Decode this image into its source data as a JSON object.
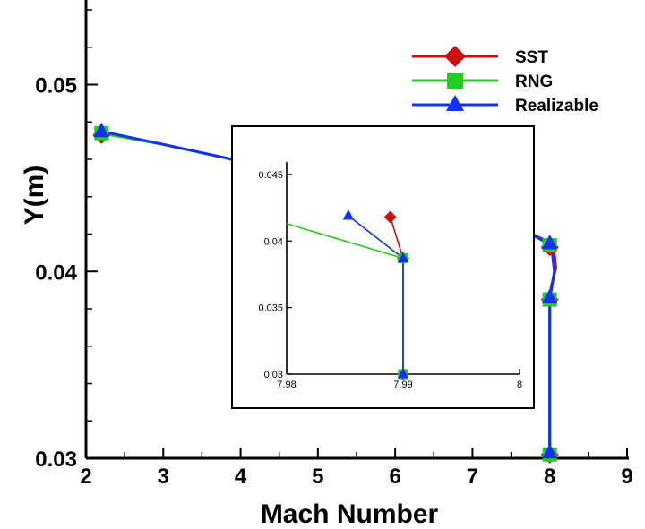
{
  "chart_data": [
    {
      "type": "line",
      "title": "",
      "xlabel": "Mach Number",
      "ylabel": "Y(m)",
      "xlim": [
        2,
        9
      ],
      "ylim": [
        0.03,
        0.055
      ],
      "xticks": [
        2,
        3,
        4,
        5,
        6,
        7,
        8,
        9
      ],
      "yticks": [
        0.03,
        0.04,
        0.05
      ],
      "xtick_labels": [
        "2",
        "3",
        "4",
        "5",
        "6",
        "7",
        "8",
        "9"
      ],
      "ytick_labels": [
        "0.03",
        "0.04",
        "0.05"
      ],
      "legend_position": "top-right",
      "series": [
        {
          "name": "SST",
          "color": "#cc1111",
          "marker": "diamond",
          "x": [
            2.2,
            3.0,
            4.0,
            5.0,
            6.0,
            6.45,
            7.0,
            7.6,
            7.98,
            8.05,
            8.08,
            8.02,
            8.0,
            8.0,
            8.0,
            8.0
          ],
          "y": [
            0.0474,
            0.0468,
            0.0459,
            0.0452,
            0.0442,
            0.0435,
            0.0429,
            0.0423,
            0.0416,
            0.0413,
            0.0402,
            0.0392,
            0.0385,
            0.0355,
            0.033,
            0.0302
          ]
        },
        {
          "name": "RNG",
          "color": "#22cc22",
          "marker": "square",
          "x": [
            2.2,
            3.0,
            4.0,
            5.0,
            6.0,
            6.45,
            7.0,
            7.6,
            7.98,
            8.03,
            8.06,
            8.02,
            8.0,
            8.0,
            8.0,
            8.0
          ],
          "y": [
            0.0474,
            0.0468,
            0.0459,
            0.0452,
            0.0442,
            0.0435,
            0.0429,
            0.0423,
            0.0415,
            0.0411,
            0.04,
            0.039,
            0.0385,
            0.0355,
            0.033,
            0.0302
          ]
        },
        {
          "name": "Realizable",
          "color": "#1133ee",
          "marker": "triangle",
          "x": [
            2.2,
            3.0,
            4.0,
            5.0,
            6.0,
            6.45,
            7.0,
            7.6,
            7.98,
            8.03,
            8.06,
            8.02,
            8.0,
            8.0,
            8.0,
            8.0
          ],
          "y": [
            0.0475,
            0.0468,
            0.0459,
            0.0452,
            0.0442,
            0.0436,
            0.043,
            0.0424,
            0.0415,
            0.0411,
            0.04,
            0.039,
            0.0385,
            0.0355,
            0.033,
            0.0302
          ]
        }
      ],
      "markers": {
        "x": [
          2.2,
          6.45,
          8.0,
          8.0,
          8.0
        ],
        "SST_y": [
          0.0473,
          0.0435,
          0.0413,
          0.0385,
          0.0302
        ],
        "RNG_y": [
          0.0474,
          0.0436,
          0.0414,
          0.0385,
          0.0302
        ],
        "Realizable_y": [
          0.0475,
          0.0437,
          0.0415,
          0.0386,
          0.0303
        ]
      }
    },
    {
      "type": "line",
      "title": "",
      "xlabel": "",
      "ylabel": "",
      "xlim": [
        7.98,
        8
      ],
      "ylim": [
        0.03,
        0.046
      ],
      "xticks": [
        7.98,
        7.99,
        8
      ],
      "yticks": [
        0.03,
        0.035,
        0.04,
        0.045
      ],
      "xtick_labels": [
        "7.98",
        "7.99",
        "8"
      ],
      "ytick_labels": [
        "0.03",
        "0.035",
        "0.04",
        "0.045"
      ],
      "series": [
        {
          "name": "SST",
          "color": "#cc1111",
          "marker": "diamond",
          "x": [
            7.9889,
            7.99,
            7.99,
            7.99
          ],
          "y": [
            0.0418,
            0.0387,
            0.0387,
            0.03
          ],
          "marker_indices": [
            0,
            1,
            3
          ]
        },
        {
          "name": "RNG",
          "color": "#22cc22",
          "marker": "square",
          "x": [
            7.98,
            7.99,
            7.99
          ],
          "y": [
            0.0413,
            0.0387,
            0.03
          ],
          "marker_indices": [
            1,
            2
          ]
        },
        {
          "name": "Realizable",
          "color": "#1133ee",
          "marker": "triangle",
          "x": [
            7.9853,
            7.99,
            7.99
          ],
          "y": [
            0.0419,
            0.0387,
            0.03
          ],
          "marker_indices": [
            0,
            1,
            2
          ]
        }
      ]
    }
  ]
}
